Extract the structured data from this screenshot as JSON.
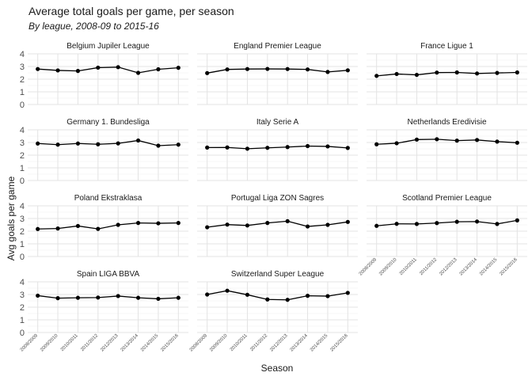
{
  "chart_data": {
    "type": "line",
    "title": "Average total goals per game, per season",
    "subtitle": "By league, 2008-09 to 2015-16",
    "xlabel": "Season",
    "ylabel": "Avg goals per game",
    "ylim": [
      0,
      4
    ],
    "yticks": [
      "0",
      "1",
      "2",
      "3",
      "4"
    ],
    "grid": true,
    "x": [
      "2008/2009",
      "2009/2010",
      "2010/2011",
      "2011/2012",
      "2012/2013",
      "2013/2014",
      "2014/2015",
      "2015/2016"
    ],
    "panels": [
      {
        "name": "Belgium Jupiler League",
        "values": [
          2.8,
          2.69,
          2.65,
          2.91,
          2.95,
          2.5,
          2.78,
          2.9
        ]
      },
      {
        "name": "England Premier League",
        "values": [
          2.48,
          2.77,
          2.8,
          2.81,
          2.8,
          2.77,
          2.57,
          2.7
        ]
      },
      {
        "name": "France Ligue 1",
        "values": [
          2.26,
          2.41,
          2.34,
          2.52,
          2.53,
          2.45,
          2.49,
          2.53
        ]
      },
      {
        "name": "Germany 1. Bundesliga",
        "values": [
          2.92,
          2.83,
          2.92,
          2.86,
          2.93,
          3.16,
          2.75,
          2.83
        ]
      },
      {
        "name": "Italy Serie A",
        "values": [
          2.6,
          2.61,
          2.51,
          2.58,
          2.64,
          2.72,
          2.69,
          2.57
        ]
      },
      {
        "name": "Netherlands Eredivisie",
        "values": [
          2.86,
          2.94,
          3.23,
          3.26,
          3.15,
          3.2,
          3.07,
          2.98
        ]
      },
      {
        "name": "Poland Ekstraklasa",
        "values": [
          2.17,
          2.21,
          2.41,
          2.18,
          2.5,
          2.65,
          2.62,
          2.65
        ]
      },
      {
        "name": "Portugal Liga ZON Sagres",
        "values": [
          2.31,
          2.52,
          2.45,
          2.65,
          2.79,
          2.37,
          2.5,
          2.73
        ]
      },
      {
        "name": "Scotland Premier League",
        "values": [
          2.42,
          2.58,
          2.57,
          2.64,
          2.74,
          2.76,
          2.57,
          2.85
        ]
      },
      {
        "name": "Spain LIGA BBVA",
        "values": [
          2.91,
          2.71,
          2.74,
          2.76,
          2.88,
          2.74,
          2.66,
          2.74
        ]
      },
      {
        "name": "Switzerland Super League",
        "values": [
          3.0,
          3.3,
          2.98,
          2.61,
          2.58,
          2.9,
          2.87,
          3.13
        ]
      }
    ]
  }
}
